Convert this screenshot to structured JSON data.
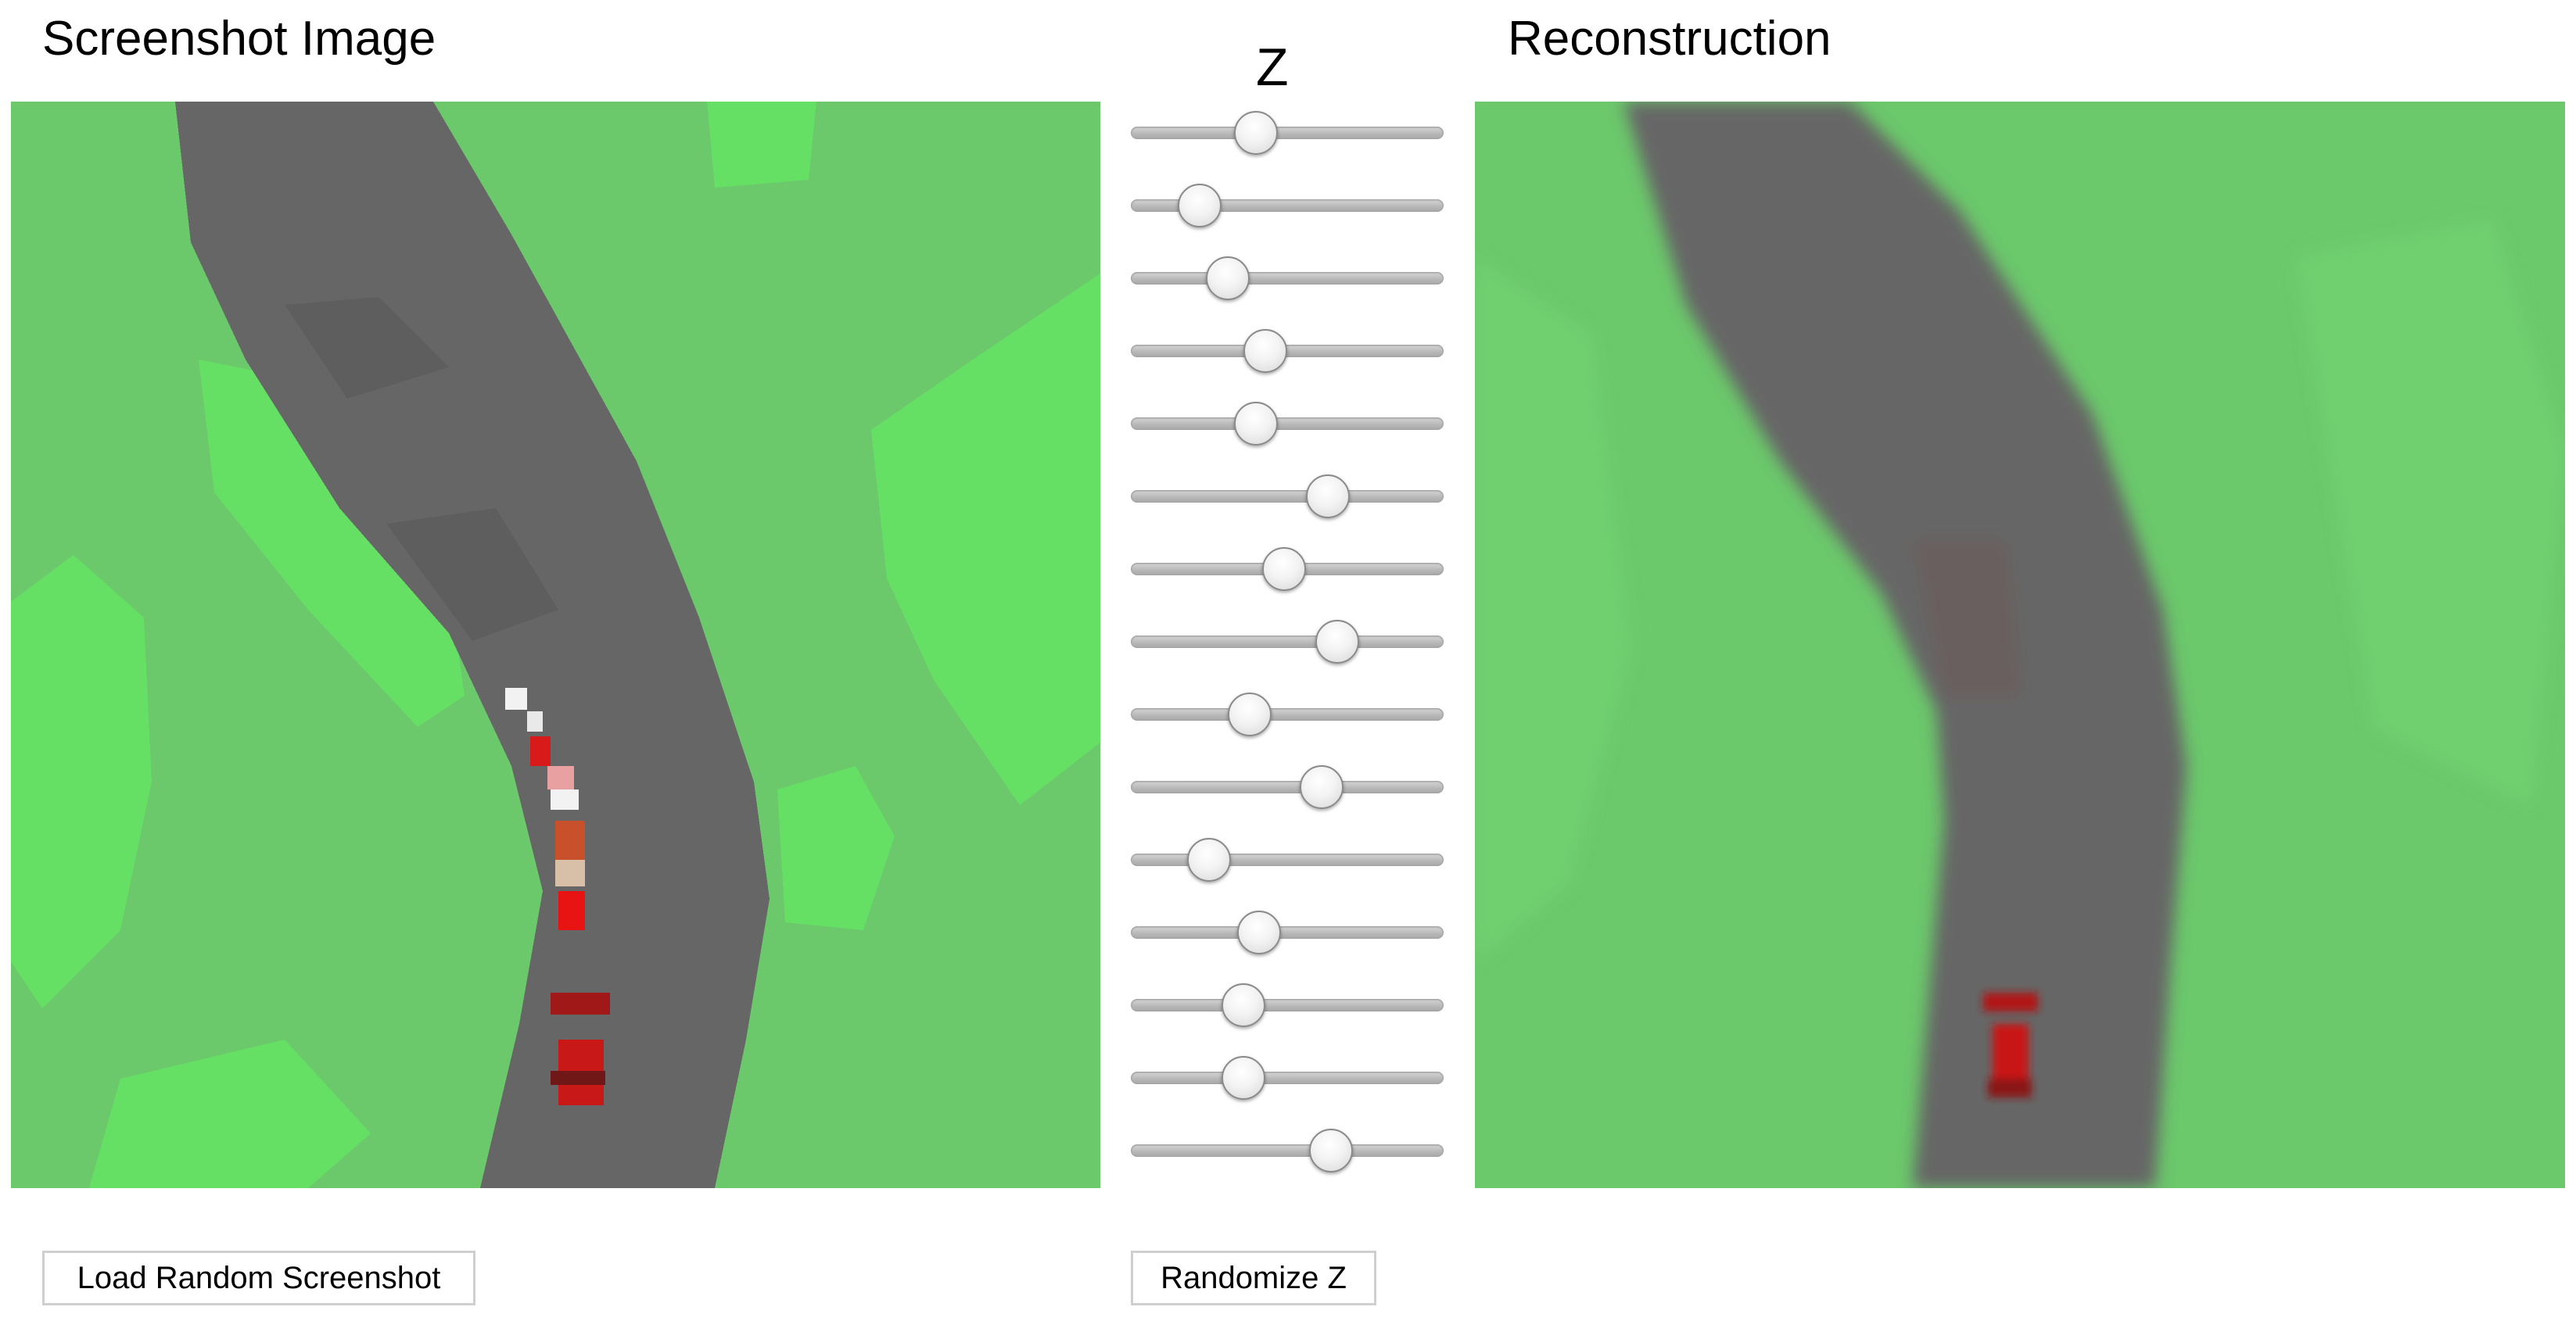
{
  "panels": {
    "left_title": "Screenshot Image",
    "right_title": "Reconstruction",
    "z_label": "Z"
  },
  "colors": {
    "grass": "#6bc86b",
    "grass_light": "#65e065",
    "road": "#666666",
    "road_dark": "#5e5e5e",
    "car_red": "#e81414",
    "car_dark_red": "#a01818",
    "curb_white": "#f2f2f2",
    "curb_red": "#d81a1a"
  },
  "sliders": {
    "count": 15,
    "values": [
      0.4,
      0.22,
      0.31,
      0.43,
      0.4,
      0.63,
      0.49,
      0.66,
      0.38,
      0.61,
      0.25,
      0.41,
      0.36,
      0.36,
      0.64
    ]
  },
  "buttons": {
    "load_label": "Load Random Screenshot",
    "randomize_label": "Randomize Z"
  }
}
